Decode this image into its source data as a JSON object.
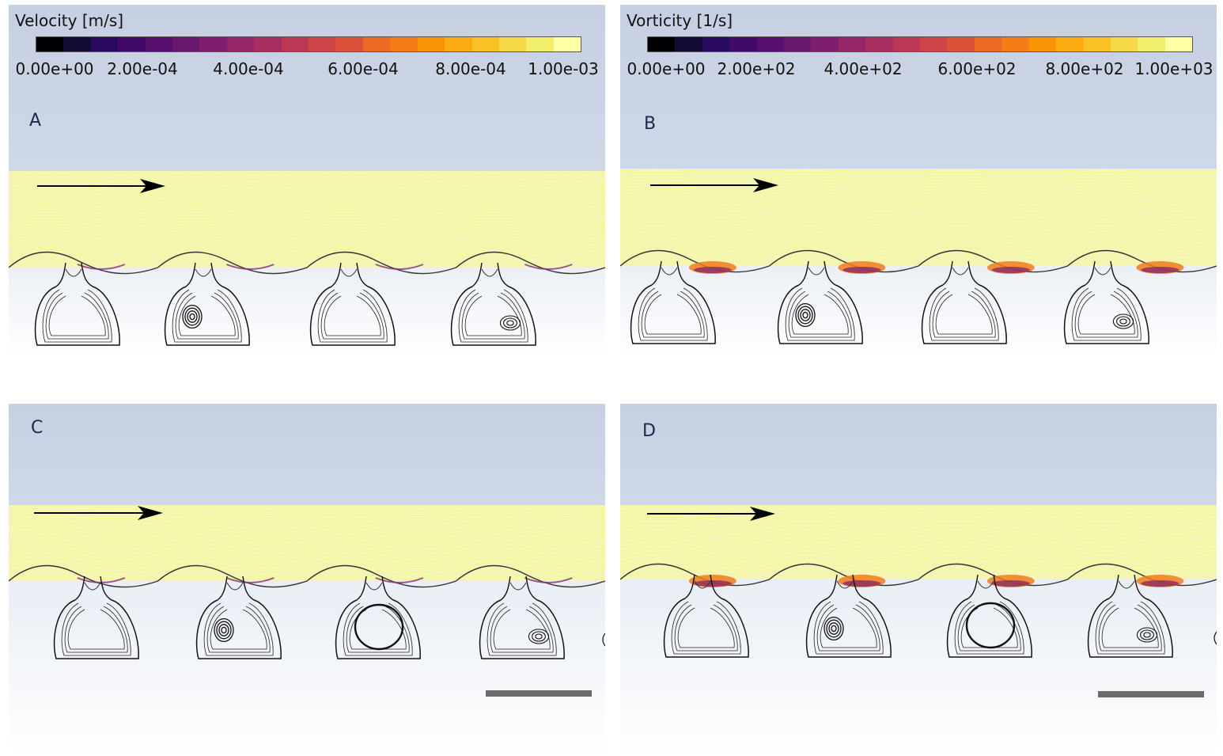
{
  "panels": [
    {
      "letter": "A",
      "colorbar": {
        "title": "Velocity [m/s]",
        "ticks": [
          "0.00e+00",
          "2.00e-04",
          "4.00e-04",
          "6.00e-04",
          "8.00e-04",
          "1.00e-03"
        ]
      }
    },
    {
      "letter": "B",
      "colorbar": {
        "title": "Vorticity [1/s]",
        "ticks": [
          "0.00e+00",
          "2.00e+02",
          "4.00e+02",
          "6.00e+02",
          "8.00e+02",
          "1.00e+03"
        ]
      }
    },
    {
      "letter": "C"
    },
    {
      "letter": "D"
    }
  ],
  "colormap": [
    "#000004",
    "#140b34",
    "#2a0a5e",
    "#420a68",
    "#57106e",
    "#6a176e",
    "#7f1e6c",
    "#932667",
    "#a82e5f",
    "#bc3754",
    "#cf4446",
    "#dd513a",
    "#ed6925",
    "#f57d15",
    "#fa9407",
    "#fcab10",
    "#fac127",
    "#f6d746",
    "#f2ee6a",
    "#fcffa4"
  ],
  "colors": {
    "sky": "#c9d3e3",
    "stream": "#f3f5b0",
    "stream_line": "#fbfd9a"
  }
}
